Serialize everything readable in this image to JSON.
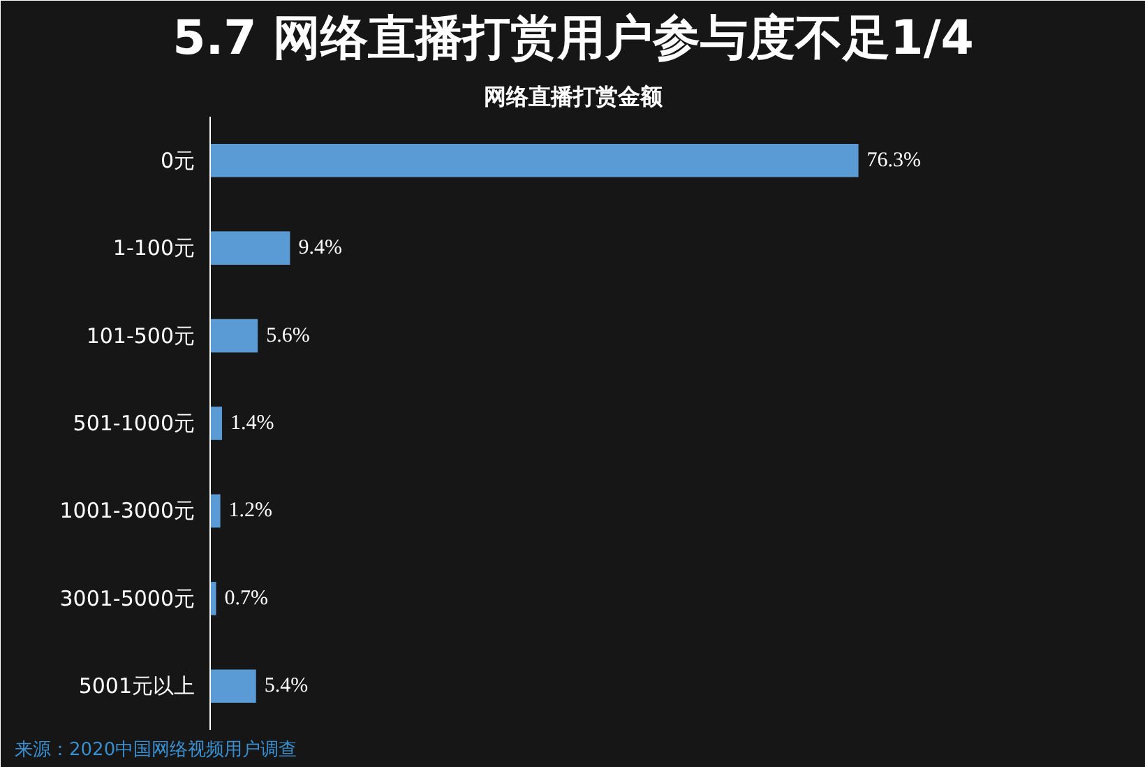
{
  "chart_data": {
    "type": "bar",
    "orientation": "horizontal",
    "title": "5.7 网络直播打赏用户参与度不足1/4",
    "subtitle": "网络直播打赏金额",
    "categories": [
      "0元",
      "1-100元",
      "101-500元",
      "501-1000元",
      "1001-3000元",
      "3001-5000元",
      "5001元以上"
    ],
    "values": [
      76.3,
      9.4,
      5.6,
      1.4,
      1.2,
      0.7,
      5.4
    ],
    "value_labels": [
      "76.3%",
      "9.4%",
      "5.6%",
      "1.4%",
      "1.2%",
      "0.7%",
      "5.4%"
    ],
    "color": "#5b9bd5",
    "annotations": [
      "来源：2020中国网络视频用户调查"
    ]
  }
}
